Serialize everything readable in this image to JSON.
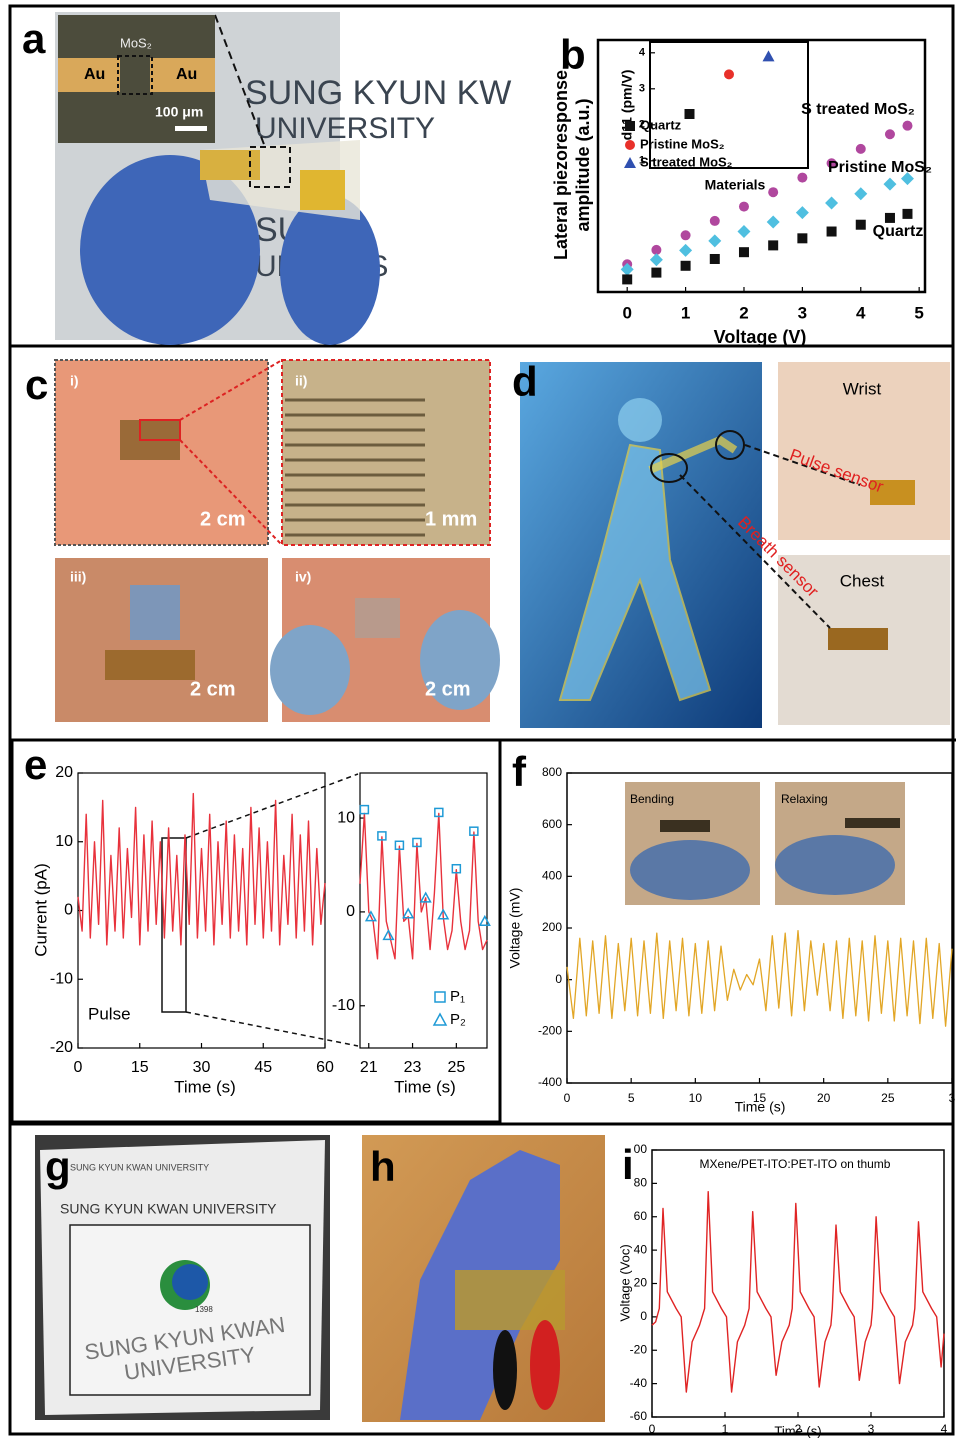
{
  "panel_labels": [
    "a",
    "b",
    "c",
    "d",
    "e",
    "f",
    "g",
    "h",
    "i"
  ],
  "photo_texts": {
    "a": {
      "left_electrode": "Au",
      "channel": "MoS₂",
      "right_electrode": "Au",
      "scale_bar": "100 μm",
      "logo_line1": "SUNG KYUN KW",
      "logo_line2": "UNIVERSITY",
      "logo_line3": "SUNG",
      "logo_line4": "UNIVERS"
    },
    "c": {
      "i": "i)",
      "i_scale": "2 cm",
      "ii": "ii)",
      "ii_scale": "1 mm",
      "iii": "iii)",
      "iii_scale": "2 cm",
      "iv": "iv)",
      "iv_scale": "2 cm"
    },
    "d": {
      "wrist": "Wrist",
      "pulse": "Pulse sensor",
      "breath": "Breath sensor",
      "chest": "Chest"
    },
    "f": {
      "bending": "Bending",
      "relaxing": "Relaxing"
    },
    "g": {
      "header": "SUNG KYUN KWAN UNIVERSITY",
      "small_logo": "SUNG KYUN KWAN UNIVERSITY",
      "year": "1398",
      "name_line1": "SUNG KYUN KWAN",
      "name_line2": "UNIVERSITY"
    }
  },
  "chart_data": [
    {
      "type": "scatter",
      "x_label": "Voltage (V)",
      "y_label": [
        "Lateral piezoresponse",
        "amplitude (a.u.)"
      ],
      "x": [
        0,
        0.5,
        1,
        1.5,
        2,
        2.5,
        3,
        3.5,
        4,
        4.5,
        4.8
      ],
      "xlim": [
        -0.5,
        5.1
      ],
      "ylim": [
        0,
        10
      ],
      "xticks": [
        0,
        1,
        2,
        3,
        4,
        5
      ],
      "series": [
        {
          "name": "S treated MoS₂",
          "color": "#b0479e",
          "marker": "circle",
          "values": [
            1.1,
            1.67,
            2.25,
            2.82,
            3.39,
            3.96,
            4.54,
            5.11,
            5.68,
            6.26,
            6.6
          ]
        },
        {
          "name": "Pristine MoS₂",
          "color": "#4fbfe0",
          "marker": "diamond",
          "values": [
            0.9,
            1.28,
            1.65,
            2.03,
            2.4,
            2.78,
            3.15,
            3.53,
            3.9,
            4.28,
            4.5
          ]
        },
        {
          "name": "Quartz",
          "color": "#111111",
          "marker": "square",
          "values": [
            0.5,
            0.77,
            1.04,
            1.31,
            1.58,
            1.85,
            2.13,
            2.4,
            2.67,
            2.94,
            3.1
          ]
        }
      ]
    },
    {
      "type": "scatter",
      "x_label": "Materials",
      "y_label": "d11 (pm/V)",
      "xlim": [
        0,
        4
      ],
      "ylim": [
        0.8,
        4.3
      ],
      "yticks": [
        1,
        2,
        3,
        4
      ],
      "series": [
        {
          "name": "Quartz",
          "color": "#111111",
          "marker": "square",
          "x": [
            1
          ],
          "values": [
            2.3
          ]
        },
        {
          "name": "Pristine MoS₂",
          "color": "#e8302a",
          "marker": "circle",
          "x": [
            2
          ],
          "values": [
            3.4
          ]
        },
        {
          "name": "S treated MoS₂",
          "color": "#3050b0",
          "marker": "triangle",
          "x": [
            3
          ],
          "values": [
            3.9
          ]
        }
      ]
    },
    {
      "type": "line",
      "x_label": "Time (s)",
      "y_label": "Current (pA)",
      "annotation": "Pulse",
      "xlim": [
        0,
        60
      ],
      "ylim": [
        -20,
        20
      ],
      "xticks": [
        0,
        15,
        30,
        45,
        60
      ],
      "yticks": [
        -20,
        -10,
        0,
        10,
        20
      ],
      "x": [
        0,
        1,
        2,
        3,
        4,
        5,
        6,
        7,
        8,
        9,
        10,
        11,
        12,
        13,
        14,
        15,
        16,
        17,
        18,
        19,
        20,
        21,
        22,
        23,
        24,
        25,
        26,
        27,
        28,
        29,
        30,
        31,
        32,
        33,
        34,
        35,
        36,
        37,
        38,
        39,
        40,
        41,
        42,
        43,
        44,
        45,
        46,
        47,
        48,
        49,
        50,
        51,
        52,
        53,
        54,
        55,
        56,
        57,
        58,
        59,
        60
      ],
      "series": [
        {
          "color": "#e8323c",
          "values": [
            2,
            -3,
            14,
            -4,
            10,
            -2,
            16,
            -5,
            8,
            -3,
            12,
            -4,
            9,
            -1,
            15,
            -5,
            11,
            -3,
            13,
            -2,
            10,
            -4,
            12,
            -3,
            8,
            -5,
            11,
            -2,
            17,
            -4,
            9,
            -3,
            14,
            -5,
            10,
            -2,
            13,
            -4,
            11,
            -3,
            9,
            -5,
            15,
            -2,
            12,
            -4,
            10,
            -3,
            16,
            -5,
            8,
            -2,
            14,
            -4,
            11,
            -3,
            13,
            -5,
            9,
            -2,
            4
          ]
        }
      ]
    },
    {
      "type": "line",
      "x_label": "Time (s)",
      "xlim": [
        20.6,
        26.4
      ],
      "ylim": [
        -14.5,
        14.8
      ],
      "xticks": [
        21,
        23,
        25
      ],
      "yticks": [
        -10,
        0,
        10
      ],
      "series": [
        {
          "color": "#e8323c",
          "x": [
            20.6,
            20.8,
            21.0,
            21.2,
            21.4,
            21.6,
            21.8,
            22.0,
            22.2,
            22.4,
            22.6,
            22.8,
            23.0,
            23.2,
            23.4,
            23.6,
            23.8,
            24.0,
            24.2,
            24.4,
            24.6,
            24.8,
            25.0,
            25.2,
            25.4,
            25.6,
            25.8,
            26.0,
            26.2,
            26.4
          ],
          "values": [
            3,
            10.5,
            0,
            -1,
            -5,
            8,
            -1,
            -3,
            -5,
            7,
            -1,
            -0.5,
            -5,
            7.3,
            0,
            1.5,
            -4,
            2,
            10.5,
            -0.5,
            -4,
            -2,
            4.5,
            -1,
            -4,
            -2,
            8.5,
            -1,
            -4,
            -3
          ]
        },
        {
          "name": "P₁",
          "type": "scatter",
          "marker": "open-square",
          "color": "#1f9ad6",
          "x": [
            20.8,
            21.6,
            22.4,
            23.2,
            24.2,
            25.0,
            25.8
          ],
          "values": [
            10.9,
            8.1,
            7.1,
            7.4,
            10.6,
            4.6,
            8.6
          ]
        },
        {
          "name": "P₂",
          "type": "scatter",
          "marker": "open-triangle",
          "color": "#1f9ad6",
          "x": [
            21.1,
            21.9,
            22.8,
            23.6,
            24.4,
            26.3
          ],
          "values": [
            -0.5,
            -2.5,
            -0.2,
            1.5,
            -0.3,
            -1
          ]
        }
      ]
    },
    {
      "type": "line",
      "x_label": "Time (s)",
      "y_label": "Voltage (mV)",
      "xlim": [
        0,
        30
      ],
      "ylim": [
        -400,
        800
      ],
      "xticks": [
        0,
        5,
        10,
        15,
        20,
        25,
        {
          "value": 30,
          "label": "3"
        }
      ],
      "yticks": [
        -400,
        -200,
        0,
        200,
        400,
        600,
        800
      ],
      "x": [
        0,
        0.5,
        1,
        1.5,
        2,
        2.5,
        3,
        3.5,
        4,
        4.5,
        5,
        5.5,
        6,
        6.5,
        7,
        7.5,
        8,
        8.5,
        9,
        9.5,
        10,
        10.5,
        11,
        11.5,
        12,
        12.5,
        13,
        13.5,
        14,
        14.5,
        15,
        15.5,
        16,
        16.5,
        17,
        17.5,
        18,
        18.5,
        19,
        19.5,
        20,
        20.5,
        21,
        21.5,
        22,
        22.5,
        23,
        23.5,
        24,
        24.5,
        25,
        25.5,
        26,
        26.5,
        27,
        27.5,
        28,
        28.5,
        29,
        29.5,
        30
      ],
      "series": [
        {
          "color": "#e2a626",
          "values": [
            50,
            -150,
            160,
            -140,
            150,
            -130,
            170,
            -150,
            140,
            -120,
            160,
            -140,
            150,
            -130,
            180,
            -150,
            150,
            -120,
            160,
            -140,
            140,
            -130,
            150,
            -120,
            130,
            -80,
            40,
            -40,
            20,
            -20,
            80,
            -120,
            170,
            -110,
            180,
            -140,
            190,
            -120,
            150,
            -60,
            140,
            -120,
            150,
            -150,
            160,
            -140,
            150,
            -160,
            170,
            -130,
            150,
            -160,
            160,
            -140,
            150,
            -170,
            160,
            -150,
            140,
            -180,
            120
          ]
        }
      ]
    },
    {
      "type": "line",
      "title": "MXene/PET-ITO:PET-ITO on thumb",
      "x_label": "Time (s)",
      "y_label": "Voltage (Voc)",
      "xlim": [
        0,
        4
      ],
      "ylim": [
        -60,
        100
      ],
      "xticks": [
        0,
        1,
        2,
        3,
        4
      ],
      "yticks": [
        -60,
        -40,
        -20,
        0,
        20,
        40,
        60,
        80,
        {
          "value": 100,
          "label": "00"
        }
      ],
      "x": [
        0,
        0.05,
        0.1,
        0.15,
        0.21,
        0.33,
        0.4,
        0.47,
        0.55,
        0.65,
        0.72,
        0.77,
        0.83,
        0.95,
        1.02,
        1.09,
        1.17,
        1.27,
        1.33,
        1.38,
        1.44,
        1.56,
        1.63,
        1.7,
        1.78,
        1.88,
        1.92,
        1.97,
        2.03,
        2.15,
        2.22,
        2.29,
        2.37,
        2.45,
        2.47,
        2.52,
        2.58,
        2.7,
        2.77,
        2.84,
        2.92,
        3.0,
        3.02,
        3.07,
        3.13,
        3.25,
        3.32,
        3.39,
        3.47,
        3.57,
        3.6,
        3.65,
        3.71,
        3.83,
        3.9,
        3.96,
        4.0
      ],
      "series": [
        {
          "color": "#e02424",
          "values": [
            -5,
            -3,
            5,
            65,
            15,
            5,
            0,
            -45,
            -15,
            -5,
            5,
            75,
            15,
            5,
            0,
            -45,
            -15,
            -5,
            5,
            63,
            15,
            5,
            0,
            -35,
            -15,
            -5,
            5,
            68,
            15,
            5,
            0,
            -42,
            -15,
            -5,
            5,
            55,
            15,
            5,
            0,
            -38,
            -15,
            -5,
            5,
            60,
            15,
            5,
            0,
            -40,
            -15,
            -5,
            5,
            57,
            15,
            5,
            0,
            -30,
            -10
          ]
        }
      ]
    }
  ]
}
